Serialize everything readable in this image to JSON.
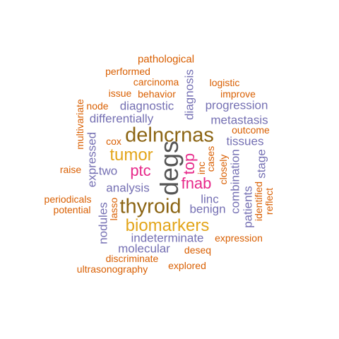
{
  "colors": {
    "orange": "#d95f02",
    "purple": "#7570b3",
    "brown": "#8c6514",
    "gold": "#e3a51a",
    "magenta": "#e7298a",
    "gray": "#555555"
  },
  "words": [
    {
      "text": "pathological",
      "color": "orange"
    },
    {
      "text": "performed",
      "color": "orange"
    },
    {
      "text": "carcinoma",
      "color": "orange"
    },
    {
      "text": "logistic",
      "color": "orange"
    },
    {
      "text": "issue",
      "color": "orange"
    },
    {
      "text": "behavior",
      "color": "orange"
    },
    {
      "text": "improve",
      "color": "orange"
    },
    {
      "text": "node",
      "color": "orange"
    },
    {
      "text": "diagnostic",
      "color": "purple"
    },
    {
      "text": "progression",
      "color": "purple"
    },
    {
      "text": "diagnosis",
      "color": "purple"
    },
    {
      "text": "differentially",
      "color": "purple"
    },
    {
      "text": "metastasis",
      "color": "purple"
    },
    {
      "text": "outcome",
      "color": "orange"
    },
    {
      "text": "multivariate",
      "color": "orange"
    },
    {
      "text": "delncrnas",
      "color": "brown"
    },
    {
      "text": "tissues",
      "color": "purple"
    },
    {
      "text": "cox",
      "color": "orange"
    },
    {
      "text": "expressed",
      "color": "purple"
    },
    {
      "text": "tumor",
      "color": "gold"
    },
    {
      "text": "degs",
      "color": "gray"
    },
    {
      "text": "cases",
      "color": "orange"
    },
    {
      "text": "top",
      "color": "magenta"
    },
    {
      "text": "inc",
      "color": "orange"
    },
    {
      "text": "closely",
      "color": "orange"
    },
    {
      "text": "stage",
      "color": "purple"
    },
    {
      "text": "raise",
      "color": "orange"
    },
    {
      "text": "two",
      "color": "purple"
    },
    {
      "text": "ptc",
      "color": "magenta"
    },
    {
      "text": "fnab",
      "color": "magenta"
    },
    {
      "text": "combination",
      "color": "purple"
    },
    {
      "text": "analysis",
      "color": "purple"
    },
    {
      "text": "linc",
      "color": "purple"
    },
    {
      "text": "identified",
      "color": "orange"
    },
    {
      "text": "reflect",
      "color": "orange"
    },
    {
      "text": "patients",
      "color": "purple"
    },
    {
      "text": "periodicals",
      "color": "orange"
    },
    {
      "text": "lasso",
      "color": "orange"
    },
    {
      "text": "thyroid",
      "color": "brown"
    },
    {
      "text": "benign",
      "color": "purple"
    },
    {
      "text": "potential",
      "color": "orange"
    },
    {
      "text": "nodules",
      "color": "purple"
    },
    {
      "text": "biomarkers",
      "color": "gold"
    },
    {
      "text": "indeterminate",
      "color": "purple"
    },
    {
      "text": "expression",
      "color": "orange"
    },
    {
      "text": "molecular",
      "color": "purple"
    },
    {
      "text": "deseq",
      "color": "orange"
    },
    {
      "text": "discriminate",
      "color": "orange"
    },
    {
      "text": "explored",
      "color": "orange"
    },
    {
      "text": "ultrasonography",
      "color": "orange"
    }
  ]
}
